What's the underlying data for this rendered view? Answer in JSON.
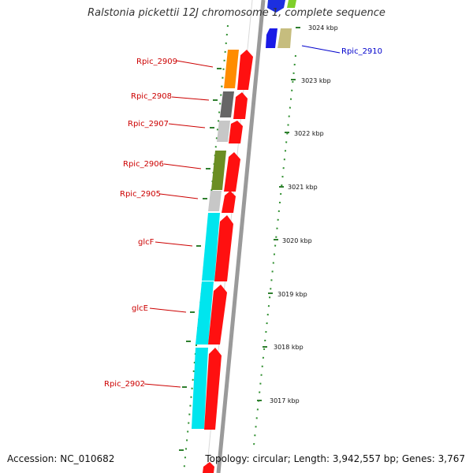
{
  "title": "Ralstonia pickettii 12J chromosome 1, complete sequence",
  "footer": {
    "accession": "Accession: NC_010682",
    "topology": "Topology: circular; Length: 3,942,557 bp; Genes: 3,767"
  },
  "ticks": [
    "3024 kbp",
    "3023 kbp",
    "3022 kbp",
    "3021 kbp",
    "3020 kbp",
    "3019 kbp",
    "3018 kbp",
    "3017 kbp"
  ],
  "genes": [
    {
      "label": "Rpic_2910",
      "color": "#0000cc",
      "block": "#c2b97a"
    },
    {
      "label": "Rpic_2909",
      "color": "#cc0000",
      "block": "#ff8c00"
    },
    {
      "label": "Rpic_2908",
      "color": "#cc0000",
      "block": "#666666"
    },
    {
      "label": "Rpic_2907",
      "color": "#cc0000",
      "block": "#c0c0c0"
    },
    {
      "label": "Rpic_2906",
      "color": "#cc0000",
      "block": "#6b8e23"
    },
    {
      "label": "Rpic_2905",
      "color": "#cc0000",
      "block": "#c0c0c0"
    },
    {
      "label": "glcF",
      "color": "#cc0000",
      "block": "#00e5ee"
    },
    {
      "label": "glcE",
      "color": "#cc0000",
      "block": "#00e5ee"
    },
    {
      "label": "Rpic_2902",
      "color": "#cc0000",
      "block": "#00e5ee"
    }
  ]
}
